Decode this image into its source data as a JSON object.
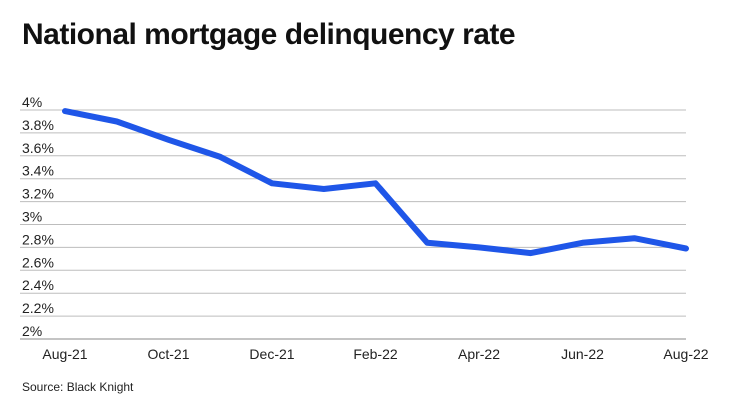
{
  "chart_data": {
    "type": "line",
    "title": "National mortgage delinquency rate",
    "xlabel": "",
    "ylabel": "",
    "x": [
      "Aug-21",
      "Sep-21",
      "Oct-21",
      "Nov-21",
      "Dec-21",
      "Jan-22",
      "Feb-22",
      "Mar-22",
      "Apr-22",
      "May-22",
      "Jun-22",
      "Jul-22",
      "Aug-22"
    ],
    "x_tick_labels": [
      "Aug-21",
      "Oct-21",
      "Dec-21",
      "Feb-22",
      "Apr-22",
      "Jun-22",
      "Aug-22"
    ],
    "y_tick_labels": [
      "4%",
      "3.8%",
      "3.6%",
      "3.4%",
      "3.2%",
      "3%",
      "2.8%",
      "2.6%",
      "2.4%",
      "2.2%",
      "2%"
    ],
    "y_ticks": [
      4.0,
      3.8,
      3.6,
      3.4,
      3.2,
      3.0,
      2.8,
      2.6,
      2.4,
      2.2,
      2.0
    ],
    "ylim": [
      2.0,
      4.0
    ],
    "series": [
      {
        "values": [
          3.99,
          3.9,
          3.74,
          3.59,
          3.36,
          3.31,
          3.36,
          2.84,
          2.8,
          2.75,
          2.84,
          2.88,
          2.79
        ]
      }
    ],
    "grid": true,
    "legend": "none",
    "line_color": "#1f56e8",
    "grid_color": "#bdbdbd"
  },
  "source": "Source: Black Knight"
}
